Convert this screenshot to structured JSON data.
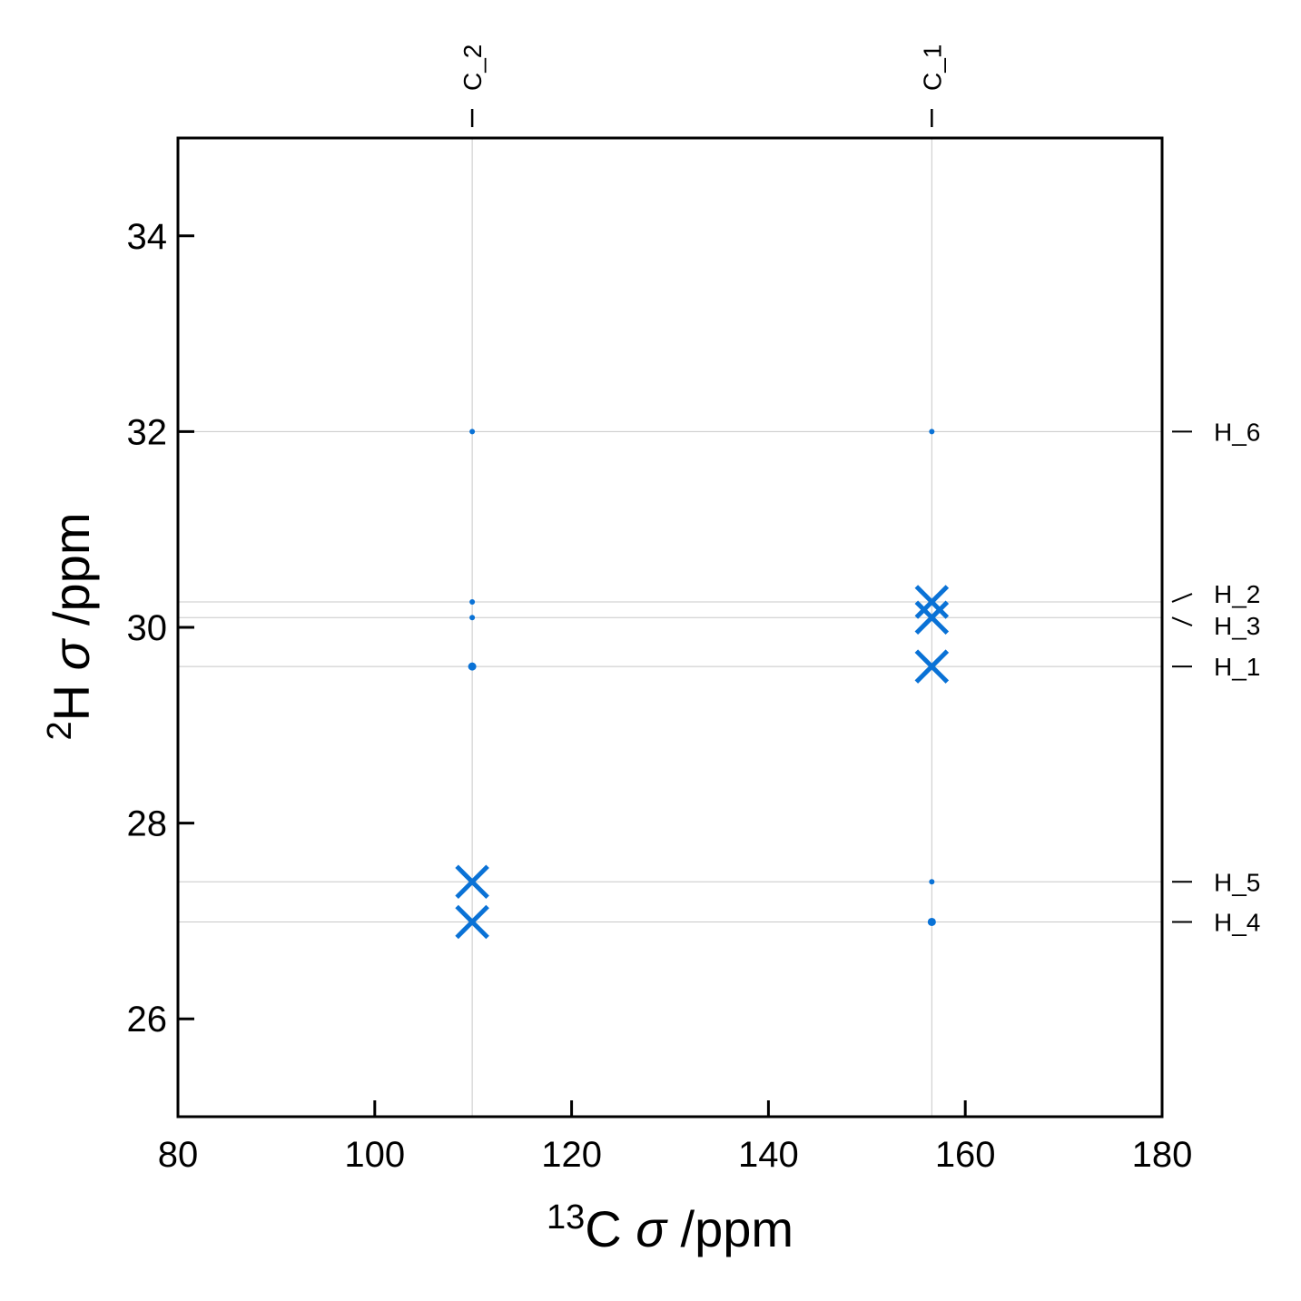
{
  "chart_data": {
    "type": "scatter",
    "xlim": [
      80,
      180
    ],
    "ylim": [
      25,
      35
    ],
    "x_ticks": [
      "80",
      "100",
      "120",
      "140",
      "160",
      "180"
    ],
    "y_ticks": [
      "26",
      "28",
      "30",
      "32",
      "34"
    ],
    "xlabel": {
      "sup": "13",
      "text": "C ",
      "sym": "σ",
      "unit": " /ppm"
    },
    "ylabel": {
      "sup": "2",
      "text": "H ",
      "sym": "σ",
      "unit": " /ppm"
    },
    "grid": "reference lines at labeled shifts",
    "marker_color": "#0a72d6",
    "top_labels": [
      {
        "label": "C_2",
        "x": 109.9
      },
      {
        "label": "C_1",
        "x": 156.6
      }
    ],
    "right_labels": [
      {
        "label": "H_6",
        "y": 32.0
      },
      {
        "label": "H_2",
        "y": 30.26
      },
      {
        "label": "H_3",
        "y": 30.1
      },
      {
        "label": "H_1",
        "y": 29.6
      },
      {
        "label": "H_5",
        "y": 27.4
      },
      {
        "label": "H_4",
        "y": 26.99
      }
    ],
    "points": [
      {
        "x": 109.9,
        "y": 32.0,
        "marker": "dot",
        "size": 1
      },
      {
        "x": 109.9,
        "y": 30.26,
        "marker": "dot",
        "size": 1
      },
      {
        "x": 109.9,
        "y": 30.1,
        "marker": "dot",
        "size": 1
      },
      {
        "x": 109.9,
        "y": 29.6,
        "marker": "dot",
        "size": 2
      },
      {
        "x": 109.9,
        "y": 27.4,
        "marker": "cross",
        "size": 1
      },
      {
        "x": 109.9,
        "y": 26.99,
        "marker": "cross",
        "size": 1
      },
      {
        "x": 156.6,
        "y": 32.0,
        "marker": "dot",
        "size": 1
      },
      {
        "x": 156.6,
        "y": 30.26,
        "marker": "cross",
        "size": 1
      },
      {
        "x": 156.6,
        "y": 30.1,
        "marker": "cross",
        "size": 1
      },
      {
        "x": 156.6,
        "y": 29.6,
        "marker": "cross",
        "size": 1
      },
      {
        "x": 156.6,
        "y": 27.4,
        "marker": "dot",
        "size": 1
      },
      {
        "x": 156.6,
        "y": 26.99,
        "marker": "dot",
        "size": 2
      }
    ]
  }
}
